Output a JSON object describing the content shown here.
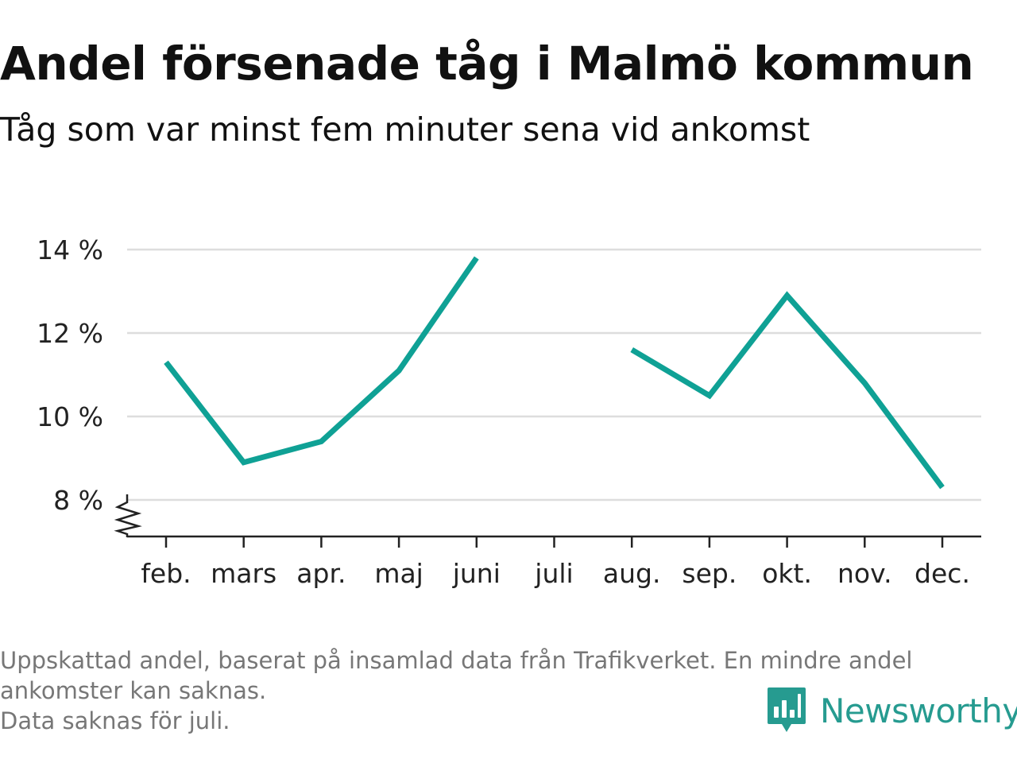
{
  "header": {
    "title": "Andel försenade tåg i Malmö kommun",
    "subtitle": "Tåg som var minst fem minuter sena vid ankomst"
  },
  "chart_data": {
    "type": "line",
    "categories": [
      "feb.",
      "mars",
      "apr.",
      "maj",
      "juni",
      "juli",
      "aug.",
      "sep.",
      "okt.",
      "nov.",
      "dec."
    ],
    "series": [
      {
        "values": [
          11.3,
          8.9,
          9.4,
          11.1,
          13.8,
          null,
          11.6,
          10.5,
          12.9,
          10.8,
          8.3
        ]
      }
    ],
    "yticks": [
      8,
      10,
      12,
      14
    ],
    "ytick_labels": [
      "8 %",
      "10 %",
      "12 %",
      "14 %"
    ],
    "ylim": [
      7.2,
      14
    ],
    "axis_break": true,
    "grid": true,
    "colors": {
      "line": "#0fa195",
      "grid": "#dddddd",
      "axis": "#222222",
      "text": "#111111"
    }
  },
  "footer": {
    "note_lines": [
      "Uppskattad andel, baserat på insamlad data från Trafikverket. En mindre andel",
      "ankomster kan saknas.",
      "Data saknas för juli."
    ],
    "brand": "Newsworthy",
    "brand_color": "#269b90",
    "logo_icon": "newsworthy-bar-chart-icon"
  }
}
